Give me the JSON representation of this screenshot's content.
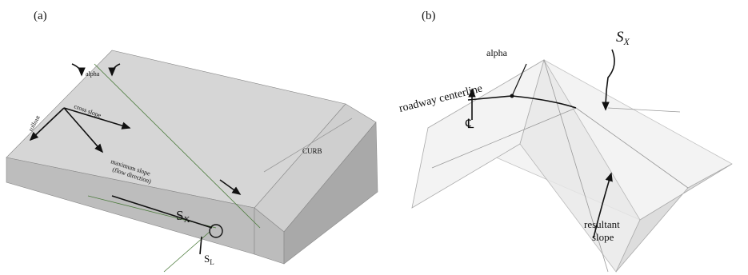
{
  "panel_a": {
    "label": "(a)",
    "alpha": "alpha",
    "cross_slope": "cross slope",
    "rollout": "rollout",
    "maximum_slope": [
      "maximum slope",
      "(flow direction)"
    ],
    "curb": "CURB",
    "sx": {
      "symbol": "S",
      "subscript": "X"
    },
    "sl": {
      "symbol": "S",
      "subscript": "L"
    }
  },
  "panel_b": {
    "label": "(b)",
    "alpha": "alpha",
    "roadway_centerline": "roadway centerline",
    "sx": {
      "symbol": "S",
      "subscript": "X"
    },
    "centerline_symbol": "℄",
    "resultant_slope": [
      "resultant",
      "slope"
    ]
  }
}
